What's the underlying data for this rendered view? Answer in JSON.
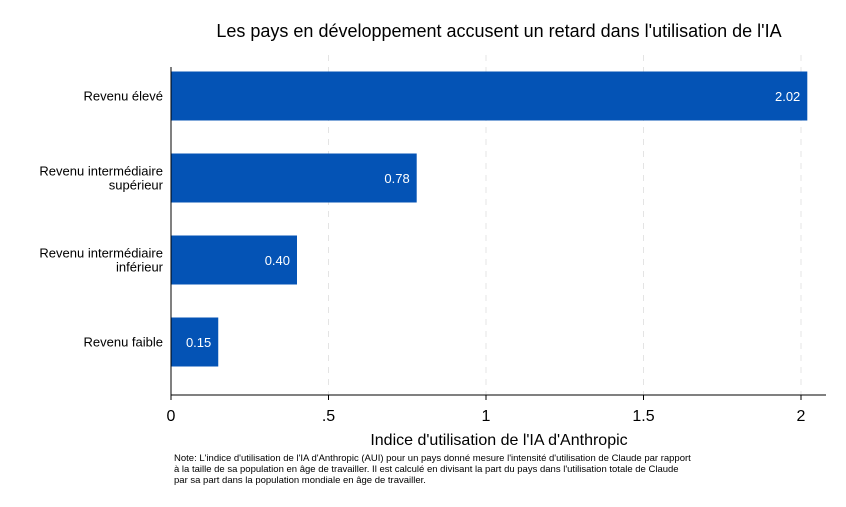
{
  "chart_data": {
    "type": "bar",
    "orientation": "horizontal",
    "title": "Les pays en développement accusent un retard dans l'utilisation de l'IA",
    "xlabel": "Indice d'utilisation de l'IA d'Anthropic",
    "ylabel": "",
    "xlim": [
      0,
      2.07
    ],
    "xticks": [
      {
        "value": 0,
        "label": "0"
      },
      {
        "value": 0.5,
        "label": ".5"
      },
      {
        "value": 1,
        "label": "1"
      },
      {
        "value": 1.5,
        "label": "1.5"
      },
      {
        "value": 2,
        "label": "2"
      }
    ],
    "grid": true,
    "bar_color": "#0453B5",
    "categories": [
      [
        "Revenu élevé"
      ],
      [
        "Revenu intermédiaire",
        "supérieur"
      ],
      [
        "Revenu intermédiaire",
        "inférieur"
      ],
      [
        "Revenu faible"
      ]
    ],
    "values": [
      2.02,
      0.78,
      0.4,
      0.15
    ],
    "value_labels": [
      "2.02",
      "0.78",
      "0.40",
      "0.15"
    ]
  },
  "note": {
    "lines": [
      "Note:  L'indice d'utilisation de l'IA d'Anthropic (AUI) pour un pays donné mesure l'intensité d'utilisation de Claude par rapport",
      "à la taille de sa population en âge de travailler. Il est calculé en divisant la part du pays dans l'utilisation totale de Claude",
      "par sa part dans la population mondiale en âge de travailler."
    ]
  }
}
